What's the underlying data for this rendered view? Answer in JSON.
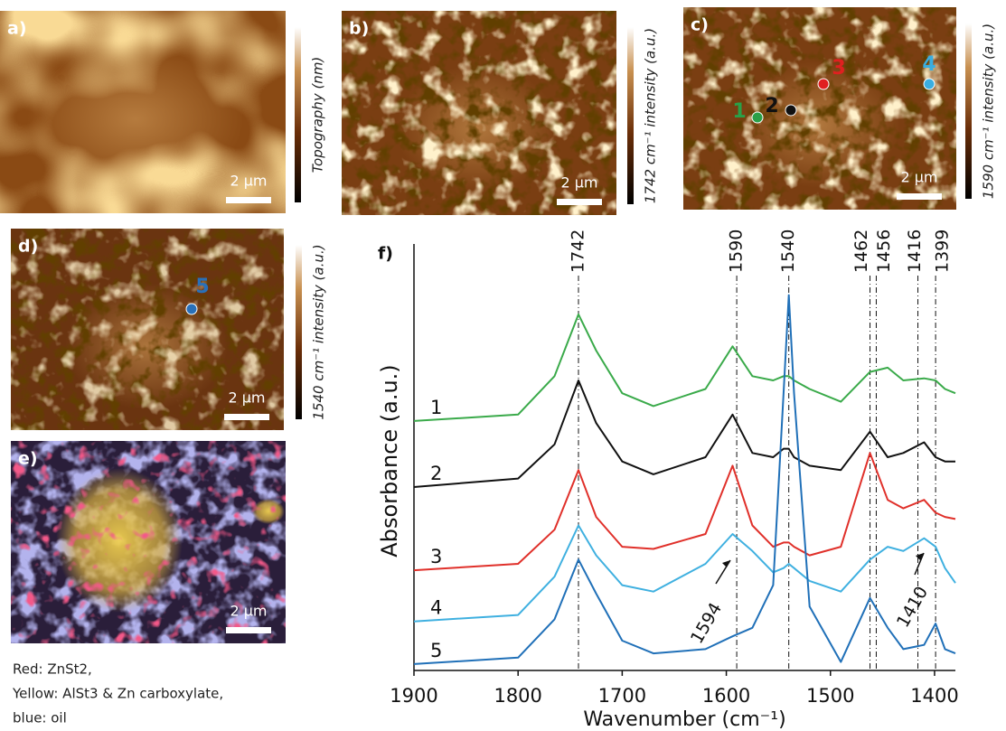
{
  "panels": [
    {
      "label": "a)",
      "colorbar_label": "Topography (nm)",
      "scale_bar": "2 µm"
    },
    {
      "label": "b)",
      "colorbar_label": "1742 cm⁻¹ intensity (a.u.)",
      "scale_bar": "2 µm"
    },
    {
      "label": "c)",
      "colorbar_label": "1590 cm⁻¹ intensity (a.u.)",
      "scale_bar": "2 µm",
      "points": [
        {
          "label": "1",
          "color": "#2aa048"
        },
        {
          "label": "2",
          "color": "#111111"
        },
        {
          "label": "3",
          "color": "#e02020"
        },
        {
          "label": "4",
          "color": "#3aaee0"
        }
      ]
    },
    {
      "label": "d)",
      "colorbar_label": "1540 cm⁻¹ intensity (a.u.)",
      "scale_bar": "2 µm",
      "points": [
        {
          "label": "5",
          "color": "#2a70b8"
        }
      ]
    },
    {
      "label": "e)",
      "scale_bar": "2 µm"
    }
  ],
  "legend_lines": [
    "Red: ZnSt2,",
    "Yellow: AlSt3 & Zn carboxylate,",
    "blue: oil"
  ],
  "chart_data": {
    "type": "line",
    "panel_label": "f)",
    "x_label": "Wavenumber (cm⁻¹)",
    "y_label": "Absorbance (a.u.)",
    "xlim": [
      1900,
      1380
    ],
    "xticks": [
      1900,
      1800,
      1700,
      1600,
      1500,
      1400
    ],
    "ylim": [
      0,
      10
    ],
    "peaks": [
      1742,
      1590,
      1540,
      1462,
      1456,
      1416,
      1399
    ],
    "arrow_labels": [
      1594,
      1410
    ],
    "x": [
      1900,
      1800,
      1765,
      1742,
      1725,
      1700,
      1670,
      1620,
      1594,
      1575,
      1555,
      1545,
      1540,
      1535,
      1520,
      1490,
      1462,
      1445,
      1430,
      1410,
      1399,
      1390,
      1380
    ],
    "series": [
      {
        "name": "1",
        "color": "#3aaa4a",
        "values": [
          5.85,
          6.0,
          6.9,
          8.35,
          7.5,
          6.5,
          6.2,
          6.6,
          7.6,
          6.9,
          6.8,
          6.9,
          6.9,
          6.8,
          6.6,
          6.3,
          7.0,
          7.1,
          6.8,
          6.85,
          6.8,
          6.6,
          6.5
        ]
      },
      {
        "name": "2",
        "color": "#111111",
        "values": [
          4.3,
          4.5,
          5.3,
          6.8,
          5.8,
          4.9,
          4.6,
          5.0,
          6.0,
          5.1,
          5.0,
          5.2,
          5.2,
          5.0,
          4.8,
          4.7,
          5.6,
          5.0,
          5.1,
          5.35,
          5.0,
          4.9,
          4.9
        ]
      },
      {
        "name": "3",
        "color": "#e0302a",
        "values": [
          2.35,
          2.5,
          3.3,
          4.7,
          3.6,
          2.9,
          2.85,
          3.2,
          4.8,
          3.4,
          2.9,
          3.0,
          3.0,
          2.9,
          2.7,
          2.9,
          5.1,
          4.0,
          3.8,
          4.0,
          3.7,
          3.6,
          3.55
        ]
      },
      {
        "name": "4",
        "color": "#3fb0e0",
        "values": [
          1.15,
          1.3,
          2.2,
          3.4,
          2.7,
          2.0,
          1.85,
          2.5,
          3.2,
          2.8,
          2.3,
          2.4,
          2.5,
          2.4,
          2.1,
          1.85,
          2.6,
          2.9,
          2.8,
          3.1,
          2.9,
          2.4,
          2.05
        ]
      },
      {
        "name": "5",
        "color": "#2070b8",
        "values": [
          0.15,
          0.3,
          1.2,
          2.6,
          1.8,
          0.7,
          0.4,
          0.5,
          0.8,
          1.0,
          2.0,
          6.5,
          8.8,
          6.5,
          1.5,
          0.2,
          1.7,
          1.0,
          0.5,
          0.6,
          1.1,
          0.5,
          0.4
        ]
      }
    ]
  }
}
